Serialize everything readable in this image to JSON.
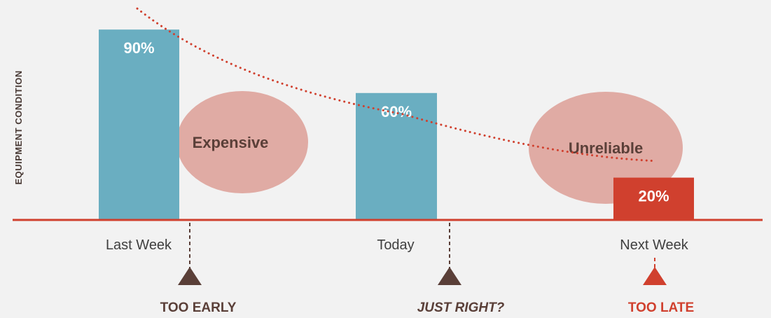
{
  "chart_data": {
    "type": "bar",
    "ylabel": "EQUIPMENT CONDITION",
    "categories": [
      "Last Week",
      "Today",
      "Next Week"
    ],
    "values": [
      90,
      60,
      20
    ],
    "value_labels": [
      "90%",
      "60%",
      "20%"
    ],
    "ylim": [
      0,
      100
    ],
    "bar_colors": [
      "#6aaec1",
      "#6aaec1",
      "#d0402e"
    ],
    "axis_color": "#d0402e",
    "trend_line": {
      "style": "dotted",
      "color": "#d0402e",
      "points": [
        [
          0,
          90
        ],
        [
          1,
          55
        ],
        [
          2,
          22
        ]
      ]
    },
    "bubbles": [
      {
        "label": "Expensive",
        "color": "#e0aba4"
      },
      {
        "label": "Unreliable",
        "color": "#e0aba4"
      }
    ],
    "markers": [
      {
        "label": "TOO EARLY",
        "color": "#5a3f38",
        "italic": false
      },
      {
        "label": "JUST RIGHT?",
        "color": "#5a3f38",
        "italic": true
      },
      {
        "label": "TOO LATE",
        "color": "#d0402e",
        "italic": false
      }
    ]
  }
}
